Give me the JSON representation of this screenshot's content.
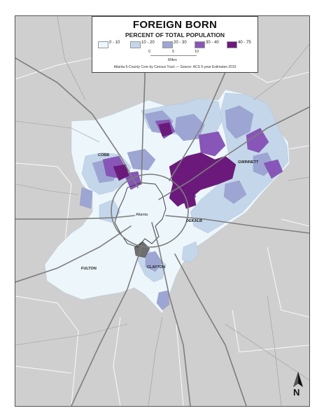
{
  "legend": {
    "title": "FOREIGN BORN",
    "subtitle": "PERCENT OF TOTAL POPULATION",
    "classes": [
      {
        "label": "0 - 10",
        "color": "#edf6fb"
      },
      {
        "label": "10 - 20",
        "color": "#c4d6ea"
      },
      {
        "label": "20 - 30",
        "color": "#9da6d3"
      },
      {
        "label": "30 - 40",
        "color": "#8856b8"
      },
      {
        "label": "40 - 75",
        "color": "#6b1a7c"
      }
    ],
    "scale": {
      "ticks": [
        "0",
        "5",
        "10"
      ],
      "unit": "Miles"
    },
    "source": "Atlanta 5-County Core by Census Tract — Source: ACS 5-year Estimates 2010"
  },
  "places": {
    "cobb": "COBB",
    "gwinnett": "GWINNETT",
    "atlanta": "Atlanta",
    "dekalb": "DEKALB",
    "fulton": "FULTON",
    "clayton": "CLAYTON"
  },
  "north": "N",
  "colors": {
    "background_land": "#cfcfcf",
    "roads": "#7d7d7d",
    "county_lines": "#ffffff",
    "city_limit": "#333333"
  }
}
